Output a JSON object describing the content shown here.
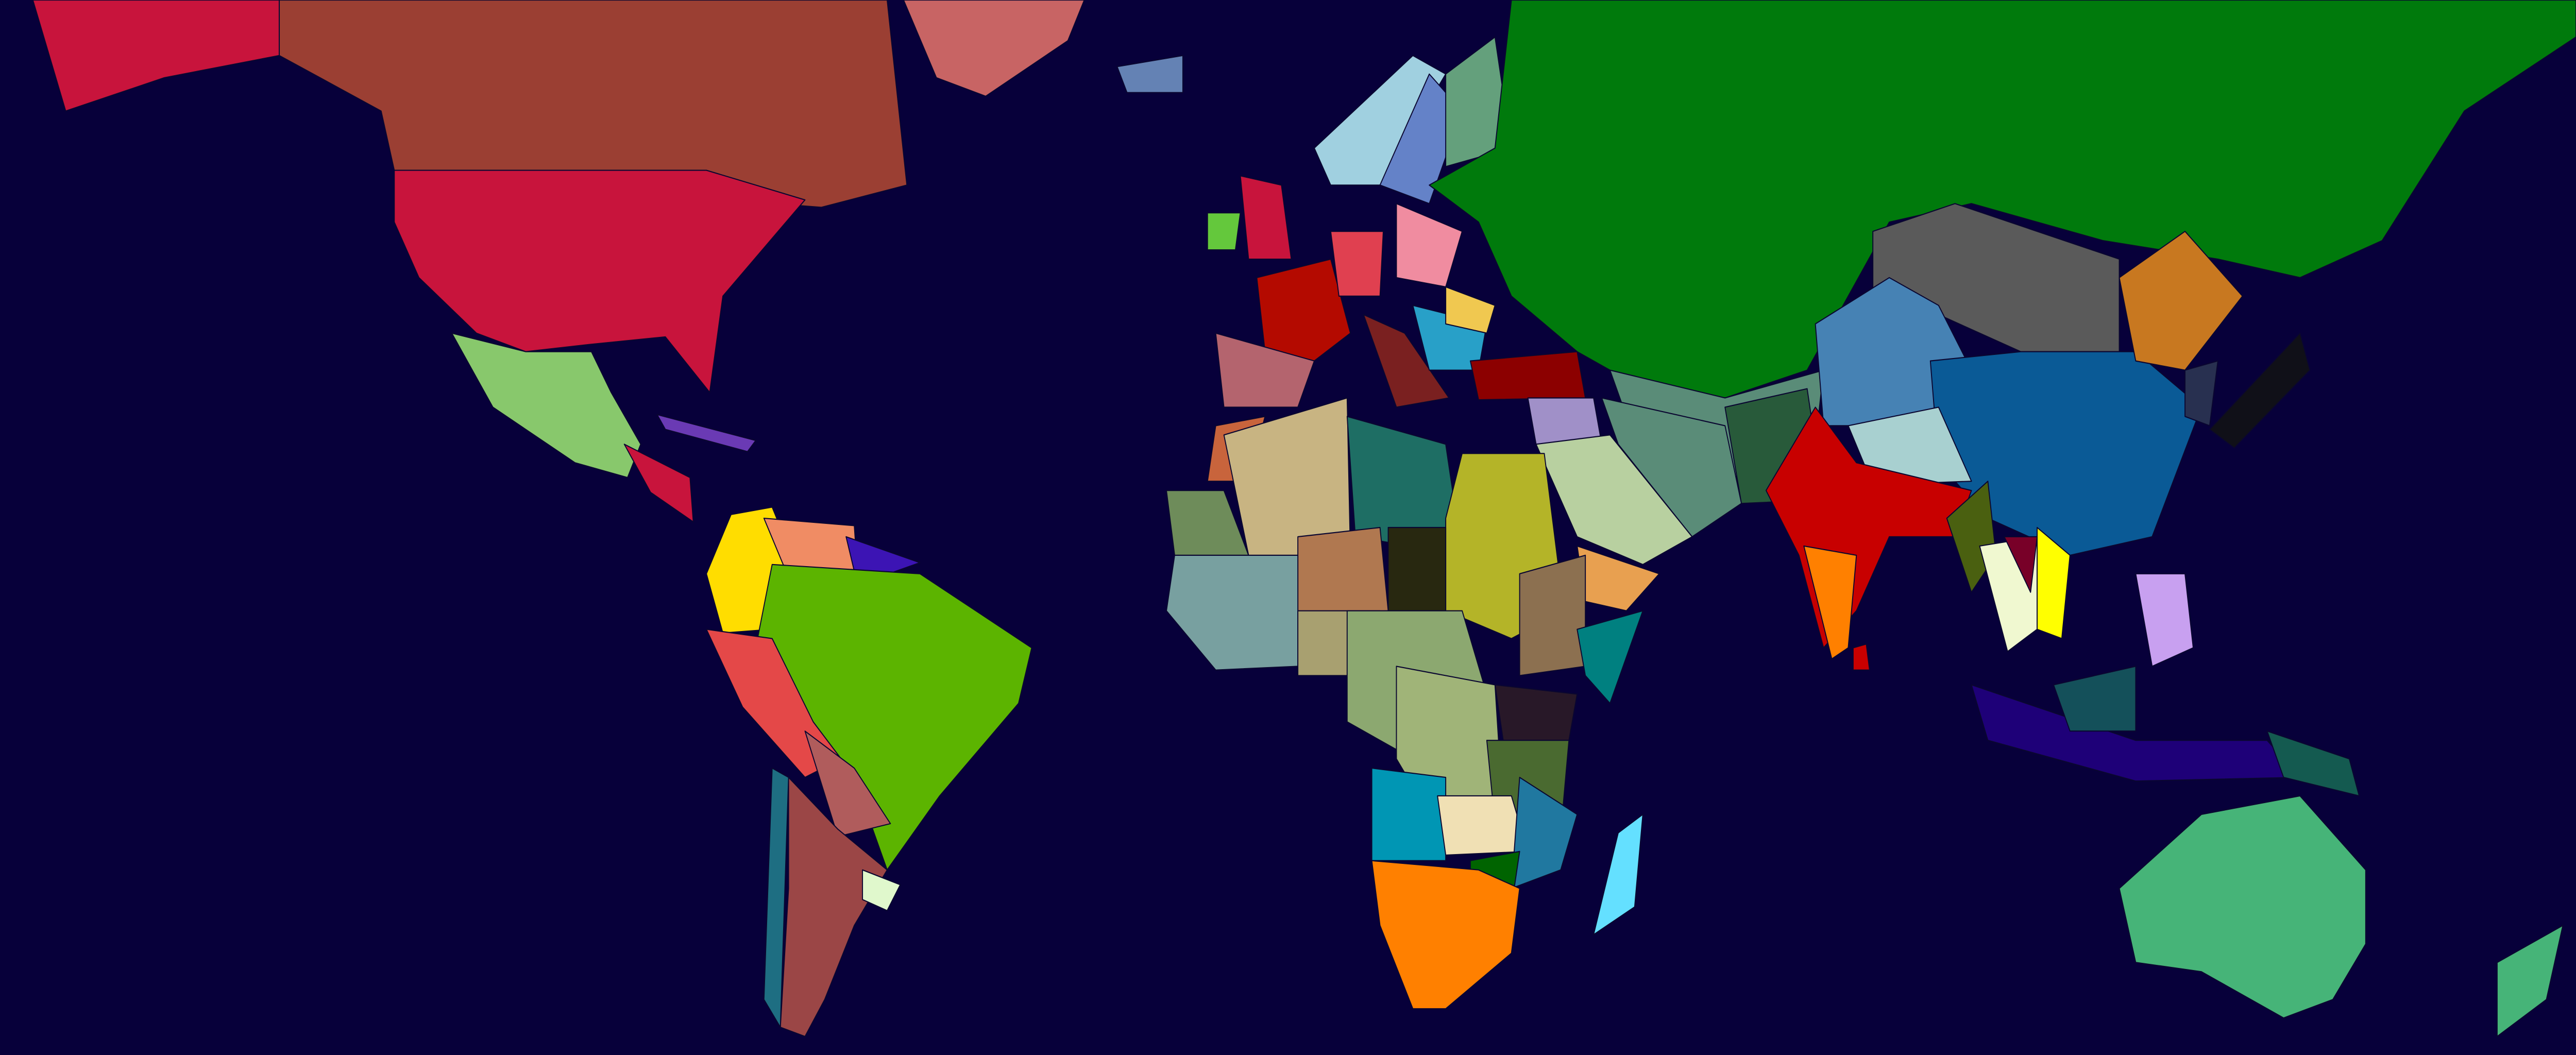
{
  "map": {
    "ocean_color": "#07003a",
    "border_color": "#0a0630",
    "region_colors": {
      "alaska": "#c8143c",
      "canada": "#9b3f33",
      "usa": "#c8143c",
      "greenland": "#c86464",
      "mexico": "#88c86c",
      "central-america": "#c8143c",
      "cuba": "#6a3ab4",
      "colombia": "#ffdd00",
      "venezuela": "#f08c64",
      "guiana": "#3c14b4",
      "brazil": "#5cb400",
      "peru": "#e44848",
      "bolivia": "#b05c5c",
      "argentina": "#9b4646",
      "chile": "#1e6e82",
      "uruguay": "#e0f8cc",
      "iceland": "#6482b4",
      "norway": "#a0d0e0",
      "sweden": "#6482c8",
      "finland": "#64a07c",
      "uk": "#c8143c",
      "ireland": "#64c83c",
      "france": "#b40a00",
      "spain": "#b4646e",
      "germany": "#e04050",
      "italy": "#7a2020",
      "poland": "#f08ca0",
      "balkans": "#28a0c8",
      "romania": "#f0c850",
      "turkey": "#8c0000",
      "russia": "#007a0c",
      "kazakhstan": "#5a8c78",
      "central-asia": "#285a3a",
      "mongolia": "#5a5a5a",
      "china": "#0a5a96",
      "xinjiang": "#4682b4",
      "tibet": "#a8d0d0",
      "manchuria": "#c87820",
      "korea": "#283050",
      "japan": "#101018",
      "india": "#c80000",
      "south-india": "#ff8000",
      "sri-lanka": "#c80000",
      "myanmar": "#4a6010",
      "thailand": "#f0f8d0",
      "vietnam": "#ffff00",
      "laos": "#780028",
      "persia": "#5a8c78",
      "syria": "#a090c8",
      "arabia": "#b8d0a0",
      "yemen": "#e8a050",
      "morocco": "#c8643c",
      "mali": "#c8b482",
      "libya": "#1e6e64",
      "sudan": "#b4b428",
      "niger": "#b07850",
      "chad": "#282810",
      "ethiopia": "#8c7050",
      "somalia": "#008080",
      "west-africa": "#78a0a0",
      "mauritania": "#6e8c5a",
      "nigeria": "#a8a070",
      "congo": "#8ca870",
      "drc": "#a0b478",
      "kenya": "#281828",
      "tanzania": "#4a6a30",
      "angola": "#0096b4",
      "zambia": "#f0e0b4",
      "mozambique": "#2078a0",
      "zimbabwe": "#006400",
      "south-africa": "#ff8000",
      "madagascar": "#64e0ff",
      "indonesia": "#1e0078",
      "philippines": "#c8a0f0",
      "borneo": "#14505a",
      "new-guinea": "#145a50",
      "australia": "#46b478",
      "new-zealand": "#46b478"
    }
  }
}
